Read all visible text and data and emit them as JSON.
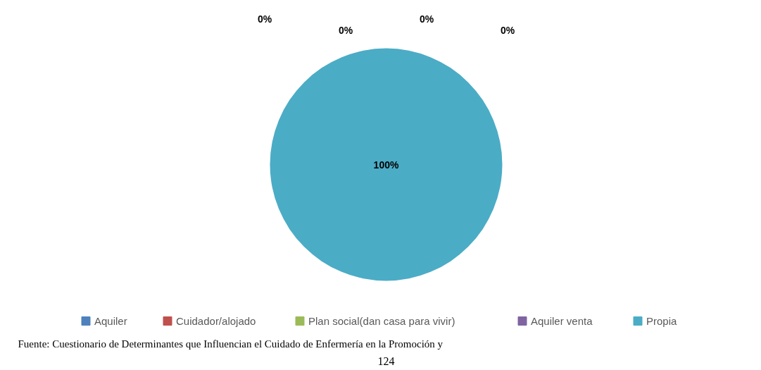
{
  "chart_data": {
    "type": "pie",
    "categories": [
      "Aquiler",
      "Cuidador/alojado",
      "Plan social(dan casa para vivir)",
      "Aquiler venta",
      "Propia"
    ],
    "values": [
      0,
      0,
      0,
      0,
      100
    ],
    "colors": [
      "#4f81bd",
      "#c0504d",
      "#9bbb59",
      "#8064a2",
      "#4bacc6"
    ],
    "value_labels": [
      "0%",
      "0%",
      "0%",
      "0%",
      "100%"
    ],
    "legend": "bottom",
    "annotations": [
      "Fuente: Cuestionario de Determinantes que Influencian el Cuidado de Enfermería en la Promoción y",
      "124"
    ]
  }
}
